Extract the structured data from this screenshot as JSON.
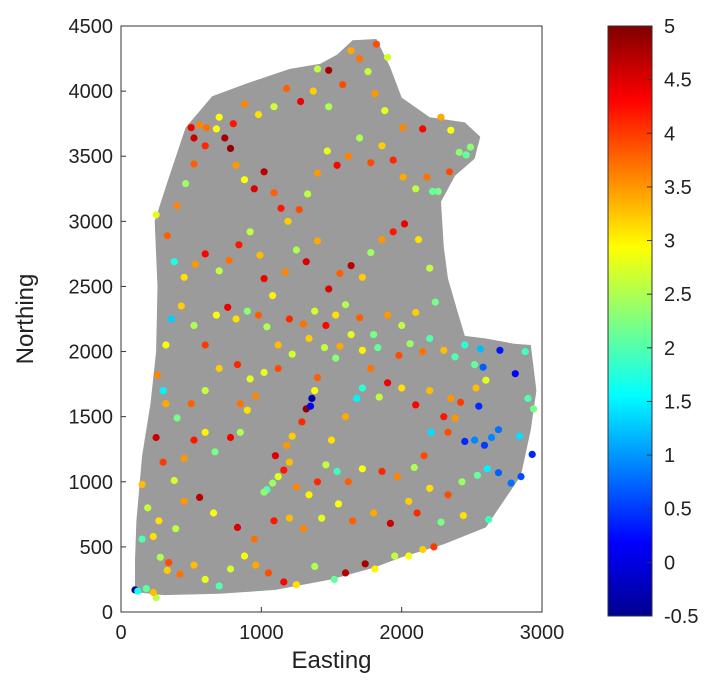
{
  "chart_data": {
    "type": "scatter",
    "title": "",
    "xlabel": "Easting",
    "ylabel": "Northing",
    "xlim": [
      0,
      3000
    ],
    "ylim": [
      0,
      4500
    ],
    "xticks": [
      "0",
      "1000",
      "2000",
      "3000"
    ],
    "yticks": [
      "0",
      "500",
      "1000",
      "1500",
      "2000",
      "2500",
      "3000",
      "3500",
      "4000",
      "4500"
    ],
    "grid": false,
    "region_color": "#9b9b9b",
    "colorbar": {
      "colormap": "jet",
      "range": [
        -0.5,
        5
      ],
      "ticks": [
        "-0.5",
        "0",
        "0.5",
        "1",
        "1.5",
        "2",
        "2.5",
        "3",
        "3.5",
        "4",
        "4.5",
        "5"
      ],
      "legend_position": "right"
    },
    "region_outline": [
      [
        130,
        150
      ],
      [
        300,
        130
      ],
      [
        700,
        140
      ],
      [
        1100,
        170
      ],
      [
        1500,
        250
      ],
      [
        1800,
        340
      ],
      [
        2000,
        420
      ],
      [
        2300,
        520
      ],
      [
        2600,
        650
      ],
      [
        2850,
        1050
      ],
      [
        2920,
        1400
      ],
      [
        2960,
        1700
      ],
      [
        2920,
        2050
      ],
      [
        2800,
        2060
      ],
      [
        2600,
        2100
      ],
      [
        2450,
        2120
      ],
      [
        2400,
        2300
      ],
      [
        2330,
        2560
      ],
      [
        2300,
        2800
      ],
      [
        2280,
        3150
      ],
      [
        2380,
        3350
      ],
      [
        2520,
        3480
      ],
      [
        2560,
        3650
      ],
      [
        2450,
        3760
      ],
      [
        2200,
        3800
      ],
      [
        2000,
        3950
      ],
      [
        1920,
        4180
      ],
      [
        1820,
        4400
      ],
      [
        1650,
        4390
      ],
      [
        1540,
        4280
      ],
      [
        1420,
        4210
      ],
      [
        1200,
        4170
      ],
      [
        900,
        4060
      ],
      [
        650,
        3960
      ],
      [
        460,
        3720
      ],
      [
        330,
        3300
      ],
      [
        240,
        3000
      ],
      [
        260,
        2500
      ],
      [
        250,
        2000
      ],
      [
        210,
        1600
      ],
      [
        150,
        1200
      ],
      [
        110,
        700
      ],
      [
        100,
        400
      ],
      [
        100,
        200
      ]
    ],
    "points": [
      [
        100,
        170,
        -0.4
      ],
      [
        250,
        110,
        2.6
      ],
      [
        330,
        320,
        3.2
      ],
      [
        420,
        290,
        3.7
      ],
      [
        520,
        360,
        3.3
      ],
      [
        600,
        250,
        2.8
      ],
      [
        700,
        200,
        2.0
      ],
      [
        780,
        330,
        2.7
      ],
      [
        880,
        430,
        2.9
      ],
      [
        960,
        360,
        3.4
      ],
      [
        1050,
        300,
        3.9
      ],
      [
        1160,
        230,
        4.3
      ],
      [
        1250,
        210,
        3.1
      ],
      [
        1380,
        350,
        2.5
      ],
      [
        1520,
        250,
        2.1
      ],
      [
        1600,
        300,
        4.7
      ],
      [
        1740,
        370,
        4.8
      ],
      [
        1810,
        330,
        3.0
      ],
      [
        1950,
        430,
        2.6
      ],
      [
        2050,
        430,
        2.9
      ],
      [
        2150,
        480,
        3.2
      ],
      [
        2230,
        500,
        4.0
      ],
      [
        2280,
        690,
        2.2
      ],
      [
        2440,
        740,
        3.1
      ],
      [
        2620,
        710,
        1.9
      ],
      [
        150,
        560,
        2.0
      ],
      [
        270,
        700,
        3.1
      ],
      [
        390,
        640,
        2.6
      ],
      [
        450,
        850,
        3.5
      ],
      [
        560,
        880,
        4.7
      ],
      [
        660,
        760,
        2.9
      ],
      [
        830,
        650,
        4.5
      ],
      [
        950,
        560,
        3.7
      ],
      [
        1090,
        700,
        4.2
      ],
      [
        1200,
        720,
        3.3
      ],
      [
        1300,
        640,
        3.6
      ],
      [
        1430,
        720,
        2.8
      ],
      [
        1550,
        830,
        2.9
      ],
      [
        1650,
        700,
        3.8
      ],
      [
        1800,
        760,
        3.4
      ],
      [
        1920,
        680,
        4.6
      ],
      [
        2050,
        850,
        3.2
      ],
      [
        2110,
        760,
        4.1
      ],
      [
        2200,
        950,
        3.1
      ],
      [
        2330,
        900,
        3.9
      ],
      [
        2430,
        1000,
        2.4
      ],
      [
        2540,
        1050,
        2.1
      ],
      [
        2610,
        1100,
        1.5
      ],
      [
        2690,
        1070,
        0.7
      ],
      [
        2780,
        990,
        0.8
      ],
      [
        2850,
        1040,
        0.6
      ],
      [
        2930,
        1210,
        0.4
      ],
      [
        2840,
        1350,
        1.4
      ],
      [
        2690,
        1400,
        0.8
      ],
      [
        2640,
        1340,
        0.9
      ],
      [
        2590,
        1280,
        0.5
      ],
      [
        2520,
        1320,
        0.9
      ],
      [
        2450,
        1310,
        0.4
      ],
      [
        2330,
        1380,
        3.9
      ],
      [
        2210,
        1380,
        1.4
      ],
      [
        2300,
        1500,
        4.2
      ],
      [
        2380,
        1490,
        3.5
      ],
      [
        2420,
        1610,
        4.0
      ],
      [
        2550,
        1580,
        0.4
      ],
      [
        2530,
        1720,
        3.3
      ],
      [
        2520,
        1900,
        2.1
      ],
      [
        2560,
        2020,
        1.2
      ],
      [
        2580,
        1880,
        0.7
      ],
      [
        2700,
        2010,
        0.3
      ],
      [
        2810,
        1830,
        0.2
      ],
      [
        2900,
        1640,
        2.0
      ],
      [
        2940,
        1560,
        2.2
      ],
      [
        2880,
        2000,
        1.9
      ],
      [
        2600,
        1780,
        2.8
      ],
      [
        2350,
        1640,
        3.5
      ],
      [
        2200,
        1700,
        3.3
      ],
      [
        2100,
        1590,
        4.3
      ],
      [
        2000,
        1720,
        3.1
      ],
      [
        1900,
        1760,
        4.4
      ],
      [
        1840,
        1650,
        2.6
      ],
      [
        1780,
        1870,
        3.7
      ],
      [
        1720,
        1720,
        1.8
      ],
      [
        1680,
        1640,
        1.5
      ],
      [
        1600,
        1500,
        3.4
      ],
      [
        1500,
        1320,
        3.1
      ],
      [
        1460,
        1130,
        2.6
      ],
      [
        1540,
        1080,
        1.9
      ],
      [
        1620,
        1000,
        3.8
      ],
      [
        1720,
        1100,
        2.9
      ],
      [
        1860,
        1080,
        4.1
      ],
      [
        1970,
        1040,
        3.6
      ],
      [
        2090,
        1110,
        2.5
      ],
      [
        2160,
        1200,
        3.9
      ],
      [
        1400,
        1000,
        4.1
      ],
      [
        1340,
        900,
        3.0
      ],
      [
        1250,
        960,
        3.6
      ],
      [
        1200,
        1150,
        3.3
      ],
      [
        1160,
        1090,
        4.2
      ],
      [
        1120,
        1040,
        2.8
      ],
      [
        1080,
        990,
        2.4
      ],
      [
        1040,
        940,
        2.0
      ],
      [
        1020,
        920,
        2.3
      ],
      [
        1100,
        1200,
        4.5
      ],
      [
        1180,
        1280,
        3.5
      ],
      [
        1220,
        1350,
        3.2
      ],
      [
        1290,
        1460,
        4.1
      ],
      [
        1320,
        1560,
        4.9
      ],
      [
        1360,
        1640,
        -0.3
      ],
      [
        1380,
        1700,
        2.9
      ],
      [
        1350,
        1580,
        0.2
      ],
      [
        1400,
        1800,
        3.8
      ],
      [
        1450,
        2030,
        2.6
      ],
      [
        1340,
        2100,
        3.2
      ],
      [
        1220,
        1980,
        2.7
      ],
      [
        1120,
        1870,
        3.9
      ],
      [
        1020,
        1840,
        2.8
      ],
      [
        960,
        1660,
        3.6
      ],
      [
        900,
        1550,
        3.1
      ],
      [
        850,
        1380,
        2.5
      ],
      [
        780,
        1340,
        4.4
      ],
      [
        670,
        1230,
        2.2
      ],
      [
        600,
        1380,
        3.0
      ],
      [
        520,
        1320,
        4.2
      ],
      [
        450,
        1180,
        3.5
      ],
      [
        380,
        1010,
        2.7
      ],
      [
        300,
        1150,
        4.0
      ],
      [
        250,
        1340,
        4.6
      ],
      [
        320,
        1600,
        3.4
      ],
      [
        400,
        1490,
        2.2
      ],
      [
        500,
        1600,
        3.8
      ],
      [
        600,
        1700,
        2.6
      ],
      [
        700,
        1870,
        3.2
      ],
      [
        830,
        1900,
        4.1
      ],
      [
        920,
        1790,
        2.8
      ],
      [
        850,
        1600,
        3.7
      ],
      [
        300,
        1700,
        1.5
      ],
      [
        260,
        1820,
        3.6
      ],
      [
        320,
        2050,
        2.9
      ],
      [
        360,
        2250,
        1.3
      ],
      [
        430,
        2350,
        3.2
      ],
      [
        520,
        2200,
        2.5
      ],
      [
        600,
        2050,
        4.0
      ],
      [
        680,
        2280,
        2.9
      ],
      [
        760,
        2340,
        4.4
      ],
      [
        820,
        2250,
        3.1
      ],
      [
        900,
        2310,
        2.3
      ],
      [
        980,
        2280,
        3.8
      ],
      [
        1040,
        2190,
        2.5
      ],
      [
        1120,
        2050,
        3.3
      ],
      [
        1200,
        2250,
        4.1
      ],
      [
        1300,
        2210,
        3.7
      ],
      [
        1380,
        2310,
        2.7
      ],
      [
        1460,
        2200,
        4.3
      ],
      [
        1530,
        2280,
        3.1
      ],
      [
        1600,
        2360,
        2.5
      ],
      [
        1700,
        2260,
        3.8
      ],
      [
        1800,
        2130,
        2.2
      ],
      [
        1900,
        2280,
        3.5
      ],
      [
        2000,
        2200,
        2.6
      ],
      [
        2100,
        2300,
        3.2
      ],
      [
        2200,
        2100,
        2.0
      ],
      [
        2150,
        2000,
        3.7
      ],
      [
        2060,
        2060,
        2.4
      ],
      [
        1980,
        1970,
        3.9
      ],
      [
        1830,
        2030,
        2.1
      ],
      [
        1720,
        2010,
        3.0
      ],
      [
        1640,
        2130,
        2.8
      ],
      [
        1560,
        2040,
        3.4
      ],
      [
        1530,
        1950,
        2.3
      ],
      [
        2300,
        2010,
        3.3
      ],
      [
        2380,
        1960,
        2.0
      ],
      [
        2450,
        2050,
        1.8
      ],
      [
        250,
        3050,
        2.8
      ],
      [
        330,
        2890,
        3.8
      ],
      [
        380,
        2690,
        1.7
      ],
      [
        450,
        2570,
        3.1
      ],
      [
        530,
        2670,
        3.5
      ],
      [
        600,
        2750,
        4.3
      ],
      [
        700,
        2620,
        2.6
      ],
      [
        770,
        2700,
        3.7
      ],
      [
        840,
        2820,
        4.2
      ],
      [
        920,
        2920,
        2.6
      ],
      [
        990,
        2740,
        3.3
      ],
      [
        1020,
        2560,
        4.4
      ],
      [
        1080,
        2430,
        3.0
      ],
      [
        1170,
        2610,
        3.6
      ],
      [
        1250,
        2780,
        2.5
      ],
      [
        1320,
        2690,
        4.5
      ],
      [
        1400,
        2850,
        3.4
      ],
      [
        1480,
        2480,
        4.5
      ],
      [
        1560,
        2600,
        3.8
      ],
      [
        1640,
        2660,
        4.7
      ],
      [
        1720,
        2570,
        3.2
      ],
      [
        1780,
        2760,
        2.4
      ],
      [
        1860,
        2860,
        3.5
      ],
      [
        1940,
        2920,
        4.2
      ],
      [
        2020,
        2980,
        4.4
      ],
      [
        2120,
        2860,
        3.1
      ],
      [
        2200,
        2640,
        2.6
      ],
      [
        2240,
        2380,
        2.2
      ],
      [
        400,
        3120,
        3.6
      ],
      [
        460,
        3290,
        2.4
      ],
      [
        520,
        3440,
        3.8
      ],
      [
        600,
        3580,
        4.1
      ],
      [
        680,
        3710,
        2.9
      ],
      [
        740,
        3640,
        4.8
      ],
      [
        780,
        3560,
        4.9
      ],
      [
        820,
        3430,
        3.5
      ],
      [
        880,
        3320,
        2.9
      ],
      [
        950,
        3250,
        4.5
      ],
      [
        1020,
        3380,
        4.7
      ],
      [
        1090,
        3220,
        3.8
      ],
      [
        1140,
        3100,
        4.2
      ],
      [
        1190,
        3000,
        3.2
      ],
      [
        1270,
        3090,
        3.9
      ],
      [
        1330,
        3210,
        2.6
      ],
      [
        1400,
        3370,
        3.5
      ],
      [
        1470,
        3540,
        2.8
      ],
      [
        1540,
        3430,
        4.3
      ],
      [
        1620,
        3500,
        3.6
      ],
      [
        1700,
        3640,
        2.5
      ],
      [
        1780,
        3450,
        3.9
      ],
      [
        1860,
        3580,
        3.2
      ],
      [
        1940,
        3470,
        4.1
      ],
      [
        2010,
        3340,
        3.4
      ],
      [
        2100,
        3250,
        2.6
      ],
      [
        2180,
        3340,
        3.7
      ],
      [
        2260,
        3230,
        2.2
      ],
      [
        2340,
        3380,
        3.9
      ],
      [
        2410,
        3530,
        2.3
      ],
      [
        2350,
        3700,
        2.9
      ],
      [
        2280,
        3800,
        3.4
      ],
      [
        2150,
        3710,
        4.3
      ],
      [
        2010,
        3720,
        3.6
      ],
      [
        1880,
        3850,
        2.8
      ],
      [
        1810,
        3980,
        3.5
      ],
      [
        1760,
        4150,
        2.6
      ],
      [
        1700,
        4250,
        3.7
      ],
      [
        1580,
        4050,
        3.9
      ],
      [
        1480,
        3880,
        2.5
      ],
      [
        1370,
        4000,
        3.2
      ],
      [
        1280,
        3920,
        4.4
      ],
      [
        1180,
        4020,
        3.8
      ],
      [
        1090,
        3880,
        2.7
      ],
      [
        980,
        3820,
        3.1
      ],
      [
        880,
        3900,
        3.6
      ],
      [
        800,
        3750,
        4.2
      ],
      [
        700,
        3800,
        2.9
      ],
      [
        610,
        3720,
        3.7
      ],
      [
        520,
        3640,
        4.6
      ],
      [
        1480,
        4160,
        4.8
      ],
      [
        1400,
        4170,
        2.6
      ],
      [
        1820,
        4360,
        3.9
      ],
      [
        1900,
        4260,
        2.7
      ],
      [
        1640,
        4310,
        3.4
      ],
      [
        2490,
        3570,
        2.3
      ],
      [
        2460,
        3510,
        2.1
      ],
      [
        500,
        3720,
        4.4
      ],
      [
        560,
        3740,
        3.6
      ],
      [
        2220,
        3230,
        2.1
      ],
      [
        150,
        980,
        3.3
      ],
      [
        190,
        800,
        2.6
      ],
      [
        230,
        580,
        3.1
      ],
      [
        280,
        420,
        2.5
      ],
      [
        180,
        180,
        2.1
      ],
      [
        230,
        150,
        3.3
      ],
      [
        340,
        380,
        3.9
      ],
      [
        120,
        160,
        1.7
      ]
    ]
  }
}
